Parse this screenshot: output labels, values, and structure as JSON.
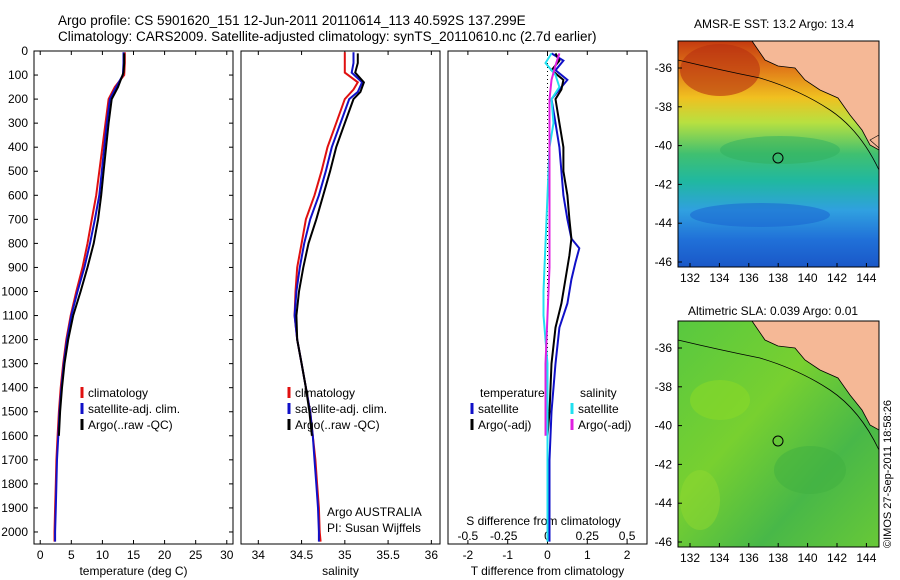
{
  "titles": {
    "line1": "Argo profile: CS 5901620_151 12-Jun-2011 20110614_113 40.592S 137.299E",
    "line2": "Climatology: CARS2009. Satellite-adjusted climatology: synTS_20110610.nc (2.7d earlier)"
  },
  "credit": "©IMOS 27-Sep-2011 18:58:26",
  "colors": {
    "climatology": "#e01010",
    "satellite": "#1010c8",
    "argo": "#000000",
    "cyan": "#20e0f0",
    "magenta": "#e020e0"
  },
  "chart_data": [
    {
      "type": "line",
      "panel": "temperature",
      "xlabel": "temperature (deg C)",
      "ylabel": "",
      "xlim": [
        -1,
        31
      ],
      "ylim": [
        2050,
        0
      ],
      "xticks": [
        0,
        5,
        10,
        15,
        20,
        25,
        30
      ],
      "yticks": [
        0,
        100,
        200,
        300,
        400,
        500,
        600,
        700,
        800,
        900,
        1000,
        1100,
        1200,
        1300,
        1400,
        1500,
        1600,
        1700,
        1800,
        1900,
        2000
      ],
      "legend": [
        "climatology",
        "satellite-adj. clim.",
        "Argo(..raw -QC)"
      ],
      "series": [
        {
          "name": "climatology",
          "color": "climatology",
          "points": [
            [
              13.6,
              5
            ],
            [
              13.6,
              50
            ],
            [
              13.5,
              100
            ],
            [
              12.0,
              150
            ],
            [
              11.0,
              200
            ],
            [
              10.5,
              300
            ],
            [
              10.0,
              400
            ],
            [
              9.5,
              500
            ],
            [
              9.0,
              600
            ],
            [
              8.3,
              700
            ],
            [
              7.6,
              800
            ],
            [
              6.8,
              900
            ],
            [
              5.8,
              1000
            ],
            [
              4.9,
              1100
            ],
            [
              4.2,
              1200
            ],
            [
              3.7,
              1300
            ],
            [
              3.3,
              1400
            ],
            [
              3.0,
              1500
            ],
            [
              2.8,
              1600
            ],
            [
              2.6,
              1700
            ],
            [
              2.5,
              1800
            ],
            [
              2.4,
              1900
            ],
            [
              2.3,
              2000
            ],
            [
              2.3,
              2040
            ]
          ]
        },
        {
          "name": "satellite-adj. clim.",
          "color": "satellite",
          "points": [
            [
              13.4,
              5
            ],
            [
              13.4,
              50
            ],
            [
              13.3,
              100
            ],
            [
              12.2,
              150
            ],
            [
              11.2,
              200
            ],
            [
              10.7,
              300
            ],
            [
              10.3,
              400
            ],
            [
              9.9,
              500
            ],
            [
              9.5,
              600
            ],
            [
              8.8,
              700
            ],
            [
              8.0,
              800
            ],
            [
              7.1,
              900
            ],
            [
              6.0,
              1000
            ],
            [
              5.0,
              1100
            ],
            [
              4.3,
              1200
            ],
            [
              3.8,
              1300
            ],
            [
              3.4,
              1400
            ],
            [
              3.1,
              1500
            ],
            [
              2.9,
              1600
            ],
            [
              2.7,
              1700
            ],
            [
              2.6,
              1800
            ],
            [
              2.5,
              1900
            ],
            [
              2.4,
              2000
            ],
            [
              2.4,
              2040
            ]
          ]
        },
        {
          "name": "Argo(..raw -QC)",
          "color": "argo",
          "points": [
            [
              13.5,
              10
            ],
            [
              13.5,
              50
            ],
            [
              13.4,
              90
            ],
            [
              12.5,
              150
            ],
            [
              11.5,
              200
            ],
            [
              11.0,
              300
            ],
            [
              10.6,
              400
            ],
            [
              10.2,
              500
            ],
            [
              9.8,
              600
            ],
            [
              9.3,
              700
            ],
            [
              8.6,
              800
            ],
            [
              7.6,
              900
            ],
            [
              6.5,
              1000
            ],
            [
              5.3,
              1100
            ],
            [
              4.5,
              1200
            ],
            [
              3.9,
              1300
            ],
            [
              3.5,
              1400
            ],
            [
              3.2,
              1500
            ],
            [
              3.0,
              1600
            ]
          ]
        }
      ]
    },
    {
      "type": "line",
      "panel": "salinity",
      "xlabel": "salinity",
      "ylabel": "",
      "xlim": [
        33.8,
        36.1
      ],
      "ylim": [
        2050,
        0
      ],
      "xticks": [
        34,
        34.5,
        35,
        35.5,
        36
      ],
      "yticks": [],
      "legend": [
        "climatology",
        "satellite-adj. clim.",
        "Argo(..raw -QC)"
      ],
      "annotation": [
        "Argo AUSTRALIA",
        "PI: Susan Wijffels"
      ],
      "series": [
        {
          "name": "climatology",
          "color": "climatology",
          "points": [
            [
              35.0,
              5
            ],
            [
              35.0,
              50
            ],
            [
              35.0,
              90
            ],
            [
              35.15,
              130
            ],
            [
              35.1,
              160
            ],
            [
              35.0,
              200
            ],
            [
              34.9,
              300
            ],
            [
              34.8,
              400
            ],
            [
              34.73,
              500
            ],
            [
              34.65,
              600
            ],
            [
              34.55,
              700
            ],
            [
              34.5,
              800
            ],
            [
              34.45,
              900
            ],
            [
              34.43,
              1000
            ],
            [
              34.42,
              1100
            ],
            [
              34.45,
              1200
            ],
            [
              34.5,
              1300
            ],
            [
              34.55,
              1400
            ],
            [
              34.6,
              1500
            ],
            [
              34.63,
              1600
            ],
            [
              34.66,
              1700
            ],
            [
              34.68,
              1800
            ],
            [
              34.7,
              1900
            ],
            [
              34.71,
              2000
            ],
            [
              34.72,
              2040
            ]
          ]
        },
        {
          "name": "satellite-adj. clim.",
          "color": "satellite",
          "points": [
            [
              35.1,
              5
            ],
            [
              35.1,
              50
            ],
            [
              35.08,
              90
            ],
            [
              35.2,
              130
            ],
            [
              35.15,
              170
            ],
            [
              35.05,
              200
            ],
            [
              34.95,
              300
            ],
            [
              34.85,
              400
            ],
            [
              34.78,
              500
            ],
            [
              34.7,
              600
            ],
            [
              34.6,
              700
            ],
            [
              34.53,
              800
            ],
            [
              34.48,
              900
            ],
            [
              34.44,
              1000
            ],
            [
              34.42,
              1100
            ],
            [
              34.45,
              1200
            ],
            [
              34.5,
              1300
            ],
            [
              34.55,
              1400
            ],
            [
              34.6,
              1500
            ],
            [
              34.63,
              1600
            ],
            [
              34.65,
              1700
            ],
            [
              34.67,
              1800
            ],
            [
              34.69,
              1900
            ],
            [
              34.7,
              2000
            ],
            [
              34.7,
              2040
            ]
          ]
        },
        {
          "name": "Argo(..raw -QC)",
          "color": "argo",
          "points": [
            [
              35.15,
              10
            ],
            [
              35.15,
              50
            ],
            [
              35.12,
              90
            ],
            [
              35.22,
              130
            ],
            [
              35.18,
              170
            ],
            [
              35.1,
              200
            ],
            [
              35.0,
              300
            ],
            [
              34.9,
              400
            ],
            [
              34.83,
              500
            ],
            [
              34.75,
              600
            ],
            [
              34.67,
              700
            ],
            [
              34.58,
              800
            ],
            [
              34.52,
              900
            ],
            [
              34.47,
              1000
            ],
            [
              34.44,
              1100
            ],
            [
              34.45,
              1200
            ],
            [
              34.5,
              1300
            ],
            [
              34.55,
              1400
            ],
            [
              34.59,
              1500
            ],
            [
              34.62,
              1600
            ]
          ]
        }
      ]
    },
    {
      "type": "line",
      "panel": "difference",
      "xlabel": "T difference from climatology",
      "xlabel_top": "S difference from climatology",
      "xlim": [
        -2.5,
        2.5
      ],
      "ylim": [
        2050,
        0
      ],
      "xticks": [
        -2,
        -1,
        0,
        1,
        2
      ],
      "xtick_labels": [
        "-2",
        "-1",
        "0",
        "1",
        "2"
      ],
      "sticks": [
        "-0.5",
        "-0.25",
        "0",
        "0.25",
        "0.5"
      ],
      "yticks": [],
      "legend": {
        "temperature": [
          "temperature",
          "satellite",
          "Argo(-adj)"
        ],
        "salinity": [
          "salinity",
          "satellite",
          "Argo(-adj)"
        ]
      },
      "series": [
        {
          "name": "T satellite",
          "color": "satellite",
          "points": [
            [
              0.1,
              10
            ],
            [
              0.4,
              40
            ],
            [
              0.2,
              80
            ],
            [
              0.5,
              120
            ],
            [
              0.3,
              160
            ],
            [
              0.1,
              200
            ],
            [
              0.2,
              300
            ],
            [
              0.3,
              400
            ],
            [
              0.35,
              500
            ],
            [
              0.4,
              600
            ],
            [
              0.5,
              700
            ],
            [
              0.6,
              780
            ],
            [
              0.8,
              820
            ],
            [
              0.7,
              880
            ],
            [
              0.6,
              950
            ],
            [
              0.5,
              1050
            ],
            [
              0.3,
              1150
            ],
            [
              0.2,
              1300
            ],
            [
              0.1,
              1500
            ],
            [
              0.05,
              1700
            ],
            [
              0.05,
              1900
            ],
            [
              0.05,
              2040
            ]
          ]
        },
        {
          "name": "T Argo(-adj)",
          "color": "argo",
          "points": [
            [
              0.2,
              10
            ],
            [
              0.3,
              40
            ],
            [
              0.1,
              80
            ],
            [
              0.4,
              120
            ],
            [
              0.35,
              160
            ],
            [
              0.2,
              200
            ],
            [
              0.3,
              300
            ],
            [
              0.4,
              400
            ],
            [
              0.4,
              500
            ],
            [
              0.5,
              600
            ],
            [
              0.55,
              700
            ],
            [
              0.6,
              780
            ],
            [
              0.55,
              850
            ],
            [
              0.45,
              950
            ],
            [
              0.35,
              1050
            ],
            [
              0.2,
              1150
            ],
            [
              0.1,
              1300
            ],
            [
              0.05,
              1500
            ],
            [
              0.0,
              1600
            ]
          ]
        },
        {
          "name": "S satellite",
          "color": "cyan",
          "points": [
            [
              0.1,
              10
            ],
            [
              -0.05,
              50
            ],
            [
              0.2,
              100
            ],
            [
              0.3,
              150
            ],
            [
              0.1,
              200
            ],
            [
              0.15,
              300
            ],
            [
              0.05,
              400
            ],
            [
              0.0,
              600
            ],
            [
              -0.05,
              800
            ],
            [
              -0.1,
              1000
            ],
            [
              -0.1,
              1100
            ],
            [
              0.0,
              1300
            ],
            [
              0.0,
              1500
            ],
            [
              0.0,
              1700
            ],
            [
              0.0,
              1900
            ],
            [
              0.0,
              2040
            ]
          ]
        },
        {
          "name": "S Argo(-adj)",
          "color": "magenta",
          "points": [
            [
              0.3,
              10
            ],
            [
              0.2,
              60
            ],
            [
              0.1,
              120
            ],
            [
              0.05,
              200
            ],
            [
              0.05,
              300
            ],
            [
              0.05,
              400
            ],
            [
              0.05,
              500
            ],
            [
              0.05,
              700
            ],
            [
              0.05,
              900
            ],
            [
              0.0,
              1100
            ],
            [
              -0.05,
              1300
            ],
            [
              -0.05,
              1500
            ],
            [
              -0.05,
              1600
            ]
          ]
        }
      ]
    }
  ],
  "maps": [
    {
      "title": "AMSR-E SST: 13.2 Argo: 13.4",
      "type": "heatmap",
      "xticks": [
        "132",
        "134",
        "136",
        "138",
        "140",
        "142",
        "144"
      ],
      "yticks": [
        "-36",
        "-38",
        "-40",
        "-42",
        "-44",
        "-46"
      ]
    },
    {
      "title": "Altimetric SLA: 0.039 Argo: 0.01",
      "type": "heatmap",
      "xticks": [
        "132",
        "134",
        "136",
        "138",
        "140",
        "142",
        "144"
      ],
      "yticks": [
        "-36",
        "-38",
        "-40",
        "-42",
        "-44",
        "-46"
      ]
    }
  ]
}
